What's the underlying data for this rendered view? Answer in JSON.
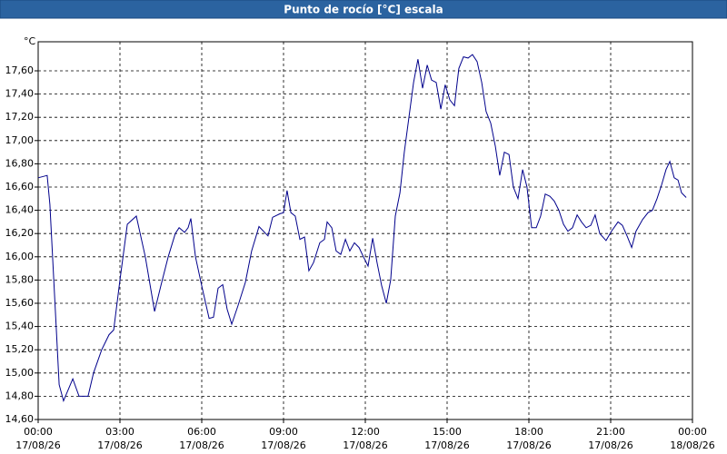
{
  "chart_data": {
    "type": "line",
    "title": "Punto de rocío [°C] escala",
    "y_label": "°C",
    "series": [
      {
        "color": "#00008b",
        "x": [
          0,
          0.33,
          0.43,
          0.77,
          0.93,
          1.27,
          1.5,
          1.83,
          2.03,
          2.33,
          2.6,
          2.77,
          3.0,
          3.27,
          3.6,
          3.93,
          4.27,
          4.5,
          4.77,
          5.03,
          5.17,
          5.37,
          5.5,
          5.6,
          5.77,
          6.0,
          6.27,
          6.43,
          6.6,
          6.77,
          6.93,
          7.1,
          7.33,
          7.6,
          7.83,
          8.1,
          8.43,
          8.6,
          8.87,
          9.0,
          9.13,
          9.27,
          9.43,
          9.6,
          9.77,
          9.93,
          10.1,
          10.33,
          10.5,
          10.6,
          10.77,
          10.93,
          11.1,
          11.27,
          11.43,
          11.6,
          11.77,
          11.93,
          12.1,
          12.27,
          12.43,
          12.6,
          12.77,
          12.93,
          13.1,
          13.27,
          13.43,
          13.6,
          13.77,
          13.93,
          14.1,
          14.27,
          14.43,
          14.6,
          14.77,
          14.93,
          15.1,
          15.27,
          15.43,
          15.6,
          15.77,
          15.93,
          16.1,
          16.27,
          16.43,
          16.6,
          16.77,
          16.93,
          17.1,
          17.27,
          17.43,
          17.6,
          17.77,
          17.93,
          18.1,
          18.27,
          18.43,
          18.6,
          18.77,
          18.93,
          19.1,
          19.27,
          19.43,
          19.6,
          19.77,
          19.93,
          20.1,
          20.27,
          20.43,
          20.6,
          20.83,
          21.03,
          21.27,
          21.43,
          21.6,
          21.77,
          21.93,
          22.17,
          22.37,
          22.53,
          22.7,
          22.87,
          23.03,
          23.17,
          23.33,
          23.47,
          23.6,
          23.77
        ],
        "values": [
          16.68,
          16.7,
          16.45,
          14.9,
          14.76,
          14.95,
          14.8,
          14.8,
          15.0,
          15.2,
          15.33,
          15.37,
          15.8,
          16.28,
          16.35,
          16.0,
          15.53,
          15.75,
          16.0,
          16.2,
          16.25,
          16.21,
          16.25,
          16.33,
          16.0,
          15.75,
          15.47,
          15.48,
          15.73,
          15.76,
          15.55,
          15.42,
          15.58,
          15.78,
          16.05,
          16.26,
          16.18,
          16.34,
          16.37,
          16.38,
          16.57,
          16.38,
          16.35,
          16.15,
          16.17,
          15.88,
          15.95,
          16.12,
          16.15,
          16.3,
          16.25,
          16.05,
          16.02,
          16.15,
          16.05,
          16.12,
          16.08,
          16.0,
          15.92,
          16.16,
          15.95,
          15.75,
          15.6,
          15.8,
          16.35,
          16.55,
          16.9,
          17.2,
          17.5,
          17.7,
          17.45,
          17.65,
          17.52,
          17.5,
          17.27,
          17.48,
          17.35,
          17.3,
          17.62,
          17.72,
          17.71,
          17.74,
          17.68,
          17.5,
          17.25,
          17.15,
          16.95,
          16.7,
          16.9,
          16.88,
          16.6,
          16.5,
          16.75,
          16.6,
          16.25,
          16.25,
          16.35,
          16.54,
          16.52,
          16.48,
          16.4,
          16.28,
          16.22,
          16.25,
          16.36,
          16.3,
          16.25,
          16.27,
          16.36,
          16.2,
          16.14,
          16.22,
          16.3,
          16.27,
          16.18,
          16.08,
          16.22,
          16.32,
          16.38,
          16.4,
          16.5,
          16.62,
          16.75,
          16.82,
          16.68,
          16.66,
          16.55,
          16.51
        ]
      }
    ],
    "xlim": [
      0,
      24
    ],
    "ylim": [
      14.6,
      17.85
    ],
    "xticks": [
      {
        "value": 0,
        "label": "00:00"
      },
      {
        "value": 3,
        "label": "03:00"
      },
      {
        "value": 6,
        "label": "06:00"
      },
      {
        "value": 9,
        "label": "09:00"
      },
      {
        "value": 12,
        "label": "12:00"
      },
      {
        "value": 15,
        "label": "15:00"
      },
      {
        "value": 18,
        "label": "18:00"
      },
      {
        "value": 21,
        "label": "21:00"
      },
      {
        "value": 24,
        "label": "00:00"
      }
    ],
    "xtick_dates": [
      "17/08/26",
      "17/08/26",
      "17/08/26",
      "17/08/26",
      "17/08/26",
      "17/08/26",
      "17/08/26",
      "17/08/26",
      "18/08/26"
    ],
    "yticks": [
      {
        "value": 14.6,
        "label": "14,60"
      },
      {
        "value": 14.8,
        "label": "14,80"
      },
      {
        "value": 15.0,
        "label": "15,00"
      },
      {
        "value": 15.2,
        "label": "15,20"
      },
      {
        "value": 15.4,
        "label": "15,40"
      },
      {
        "value": 15.6,
        "label": "15,60"
      },
      {
        "value": 15.8,
        "label": "15,80"
      },
      {
        "value": 16.0,
        "label": "16,00"
      },
      {
        "value": 16.2,
        "label": "16,20"
      },
      {
        "value": 16.4,
        "label": "16,40"
      },
      {
        "value": 16.6,
        "label": "16,60"
      },
      {
        "value": 16.8,
        "label": "16,80"
      },
      {
        "value": 17.0,
        "label": "17,00"
      },
      {
        "value": 17.2,
        "label": "17,20"
      },
      {
        "value": 17.4,
        "label": "17,40"
      },
      {
        "value": 17.6,
        "label": "17,60"
      }
    ],
    "grid": true
  }
}
